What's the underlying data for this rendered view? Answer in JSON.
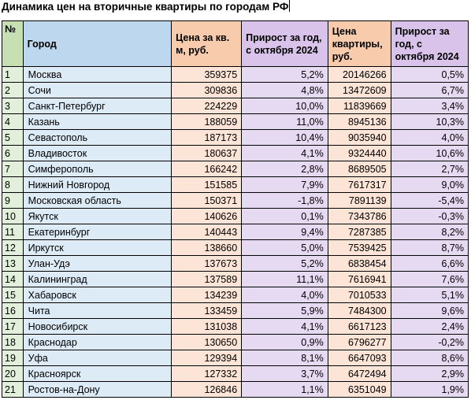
{
  "title": "Динамика цен на вторичные квартиры по городам РФ",
  "columns": {
    "num": "№",
    "city": "Город",
    "price_per_m": "Цена за кв. м, руб.",
    "growth_per_m": "Прирост за год, с октября 2024",
    "price_flat": "Цена квартиры, руб.",
    "growth_flat": "Прирост за год, с октября 2024"
  },
  "rows": [
    {
      "num": "1",
      "city": "Москва",
      "ppm": "359375",
      "ppmg": "5,2%",
      "price": "20146266",
      "priceg": "0,5%"
    },
    {
      "num": "2",
      "city": "Сочи",
      "ppm": "309836",
      "ppmg": "4,8%",
      "price": "13472609",
      "priceg": "6,7%"
    },
    {
      "num": "3",
      "city": "Санкт-Петербург",
      "ppm": "224229",
      "ppmg": "10,0%",
      "price": "11839669",
      "priceg": "3,4%"
    },
    {
      "num": "4",
      "city": "Казань",
      "ppm": "188059",
      "ppmg": "11,0%",
      "price": "8945136",
      "priceg": "10,3%"
    },
    {
      "num": "5",
      "city": "Севастополь",
      "ppm": "187173",
      "ppmg": "10,4%",
      "price": "9035940",
      "priceg": "4,0%"
    },
    {
      "num": "6",
      "city": "Владивосток",
      "ppm": "180637",
      "ppmg": "4,1%",
      "price": "9324440",
      "priceg": "10,6%"
    },
    {
      "num": "7",
      "city": "Симферополь",
      "ppm": "166242",
      "ppmg": "2,8%",
      "price": "8689505",
      "priceg": "2,7%"
    },
    {
      "num": "8",
      "city": "Нижний Новгород",
      "ppm": "151585",
      "ppmg": "7,9%",
      "price": "7617317",
      "priceg": "9,0%"
    },
    {
      "num": "9",
      "city": "Московская область",
      "ppm": "150371",
      "ppmg": "-1,8%",
      "price": "7891139",
      "priceg": "-5,4%"
    },
    {
      "num": "10",
      "city": "Якутск",
      "ppm": "140626",
      "ppmg": "0,1%",
      "price": "7343786",
      "priceg": "-0,3%"
    },
    {
      "num": "11",
      "city": "Екатеринбург",
      "ppm": "140443",
      "ppmg": "9,4%",
      "price": "7287385",
      "priceg": "8,2%"
    },
    {
      "num": "12",
      "city": "Иркутск",
      "ppm": "138660",
      "ppmg": "5,0%",
      "price": "7539425",
      "priceg": "8,7%"
    },
    {
      "num": "13",
      "city": "Улан-Удэ",
      "ppm": "137673",
      "ppmg": "5,2%",
      "price": "6838454",
      "priceg": "6,6%"
    },
    {
      "num": "14",
      "city": "Калининград",
      "ppm": "137589",
      "ppmg": "11,1%",
      "price": "7616941",
      "priceg": "7,6%"
    },
    {
      "num": "15",
      "city": "Хабаровск",
      "ppm": "134239",
      "ppmg": "4,0%",
      "price": "7010533",
      "priceg": "5,1%"
    },
    {
      "num": "16",
      "city": "Чита",
      "ppm": "133459",
      "ppmg": "5,9%",
      "price": "7484300",
      "priceg": "9,6%"
    },
    {
      "num": "17",
      "city": "Новосибирск",
      "ppm": "131038",
      "ppmg": "4,1%",
      "price": "6617123",
      "priceg": "2,4%"
    },
    {
      "num": "18",
      "city": "Краснодар",
      "ppm": "130650",
      "ppmg": "0,9%",
      "price": "6796277",
      "priceg": "-0,2%"
    },
    {
      "num": "19",
      "city": "Уфа",
      "ppm": "129394",
      "ppmg": "8,1%",
      "price": "6647093",
      "priceg": "8,6%"
    },
    {
      "num": "20",
      "city": "Красноярск",
      "ppm": "127332",
      "ppmg": "3,7%",
      "price": "6472494",
      "priceg": "2,9%"
    },
    {
      "num": "21",
      "city": "Ростов-на-Дону",
      "ppm": "126846",
      "ppmg": "1,1%",
      "price": "6351049",
      "priceg": "1,9%"
    }
  ]
}
